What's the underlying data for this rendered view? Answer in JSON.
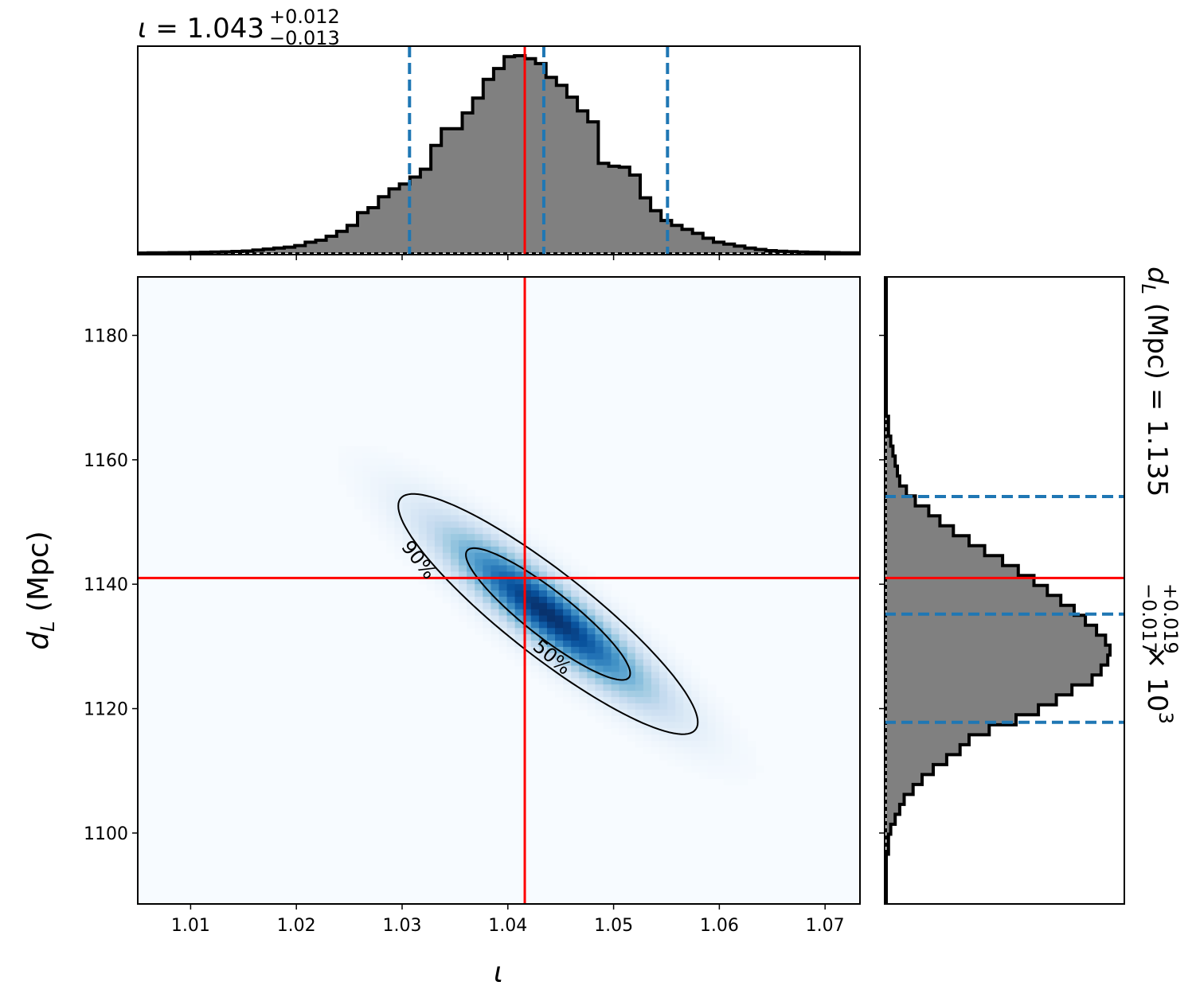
{
  "chart_data": {
    "type": "corner",
    "parameters": [
      "ι",
      "d_L (Mpc)"
    ],
    "title_top": {
      "param": "ι",
      "median": "1.043",
      "plus": "+0.012",
      "minus": "−0.013"
    },
    "title_right": {
      "param": "d",
      "param_sub": "L",
      "unit": "(Mpc)",
      "median": "1.135",
      "plus": "+0.019",
      "minus": "−0.017",
      "scale": "× 10",
      "scale_exp": "3"
    },
    "x_axis": {
      "label": "ι",
      "range": [
        1.005,
        1.0733
      ],
      "ticks": [
        1.01,
        1.02,
        1.03,
        1.04,
        1.05,
        1.06,
        1.07
      ],
      "tick_labels": [
        "1.01",
        "1.02",
        "1.03",
        "1.04",
        "1.05",
        "1.06",
        "1.07"
      ]
    },
    "y_axis": {
      "label": "d",
      "label_sub": "L",
      "label_unit": "(Mpc)",
      "range": [
        1088.6,
        1189.4
      ],
      "ticks": [
        1100,
        1120,
        1140,
        1160,
        1180
      ],
      "tick_labels": [
        "1100",
        "1120",
        "1140",
        "1160",
        "1180"
      ]
    },
    "injection": {
      "iota": 1.0416,
      "dL": 1141
    },
    "iota_quantiles": [
      1.0307,
      1.0434,
      1.0551
    ],
    "dL_quantiles": [
      1117.8,
      1135.2,
      1154.1
    ],
    "iota_histogram": {
      "edges": [
        1.005,
        1.0733
      ],
      "counts": [
        0.0,
        0.001,
        0.001,
        0.002,
        0.002,
        0.003,
        0.004,
        0.005,
        0.006,
        0.008,
        0.01,
        0.015,
        0.02,
        0.025,
        0.03,
        0.038,
        0.055,
        0.065,
        0.085,
        0.11,
        0.14,
        0.205,
        0.23,
        0.285,
        0.325,
        0.35,
        0.385,
        0.425,
        0.545,
        0.63,
        0.63,
        0.71,
        0.785,
        0.88,
        0.935,
        0.995,
        1.0,
        0.985,
        0.96,
        0.89,
        0.85,
        0.79,
        0.72,
        0.665,
        0.455,
        0.44,
        0.435,
        0.395,
        0.28,
        0.215,
        0.165,
        0.14,
        0.12,
        0.1,
        0.075,
        0.055,
        0.045,
        0.035,
        0.025,
        0.018,
        0.012,
        0.009,
        0.007,
        0.005,
        0.004,
        0.003,
        0.002,
        0.001,
        0.001
      ]
    },
    "dL_histogram": {
      "edges": [
        1088.6,
        1189.4
      ],
      "counts": [
        0.0,
        0.0,
        0.0,
        0.0,
        0.0,
        0.01,
        0.01,
        0.02,
        0.04,
        0.06,
        0.08,
        0.12,
        0.16,
        0.21,
        0.27,
        0.33,
        0.37,
        0.46,
        0.58,
        0.68,
        0.76,
        0.83,
        0.92,
        0.96,
        0.99,
        1.0,
        0.98,
        0.94,
        0.89,
        0.84,
        0.78,
        0.72,
        0.66,
        0.59,
        0.52,
        0.44,
        0.37,
        0.3,
        0.24,
        0.19,
        0.13,
        0.09,
        0.06,
        0.05,
        0.04,
        0.03,
        0.02,
        0.01,
        0.01,
        0.0,
        0.0,
        0.0,
        0.0,
        0.0,
        0.0,
        0.0,
        0.0,
        0.0,
        0.0,
        0.0,
        0.0,
        0.0,
        0.0
      ]
    },
    "posterior_2d": {
      "colormap": "Blues",
      "mean": [
        1.0438,
        1135.2
      ],
      "sigma": [
        0.0066,
        9.0
      ],
      "correlation": -0.9
    },
    "contours": [
      {
        "label": "50%",
        "level": 0.5
      },
      {
        "label": "90%",
        "level": 0.9
      }
    ],
    "colors": {
      "hist_fill": "#808080",
      "hist_edge": "#000000",
      "injection": "#ff0000",
      "quantile": "#1f77b4",
      "contour": "#000000"
    },
    "grid": false
  }
}
